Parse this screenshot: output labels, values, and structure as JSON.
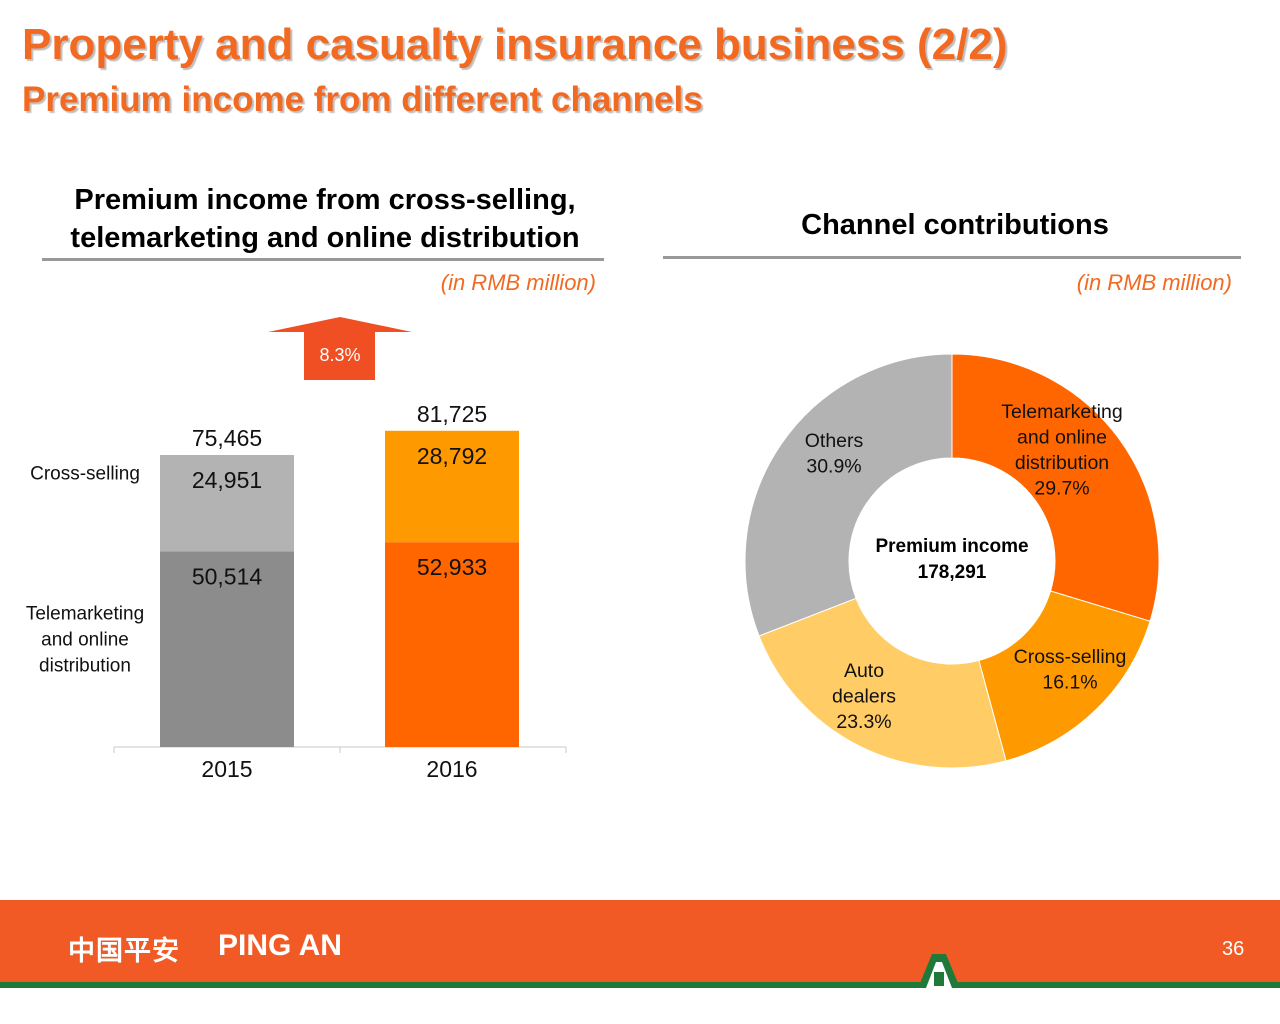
{
  "slide": {
    "title": "Property and casualty insurance business (2/2)",
    "subtitle": "Premium income from different channels",
    "page_number": "36",
    "logo_cn": "中国平安",
    "logo_en": "PING AN"
  },
  "colors": {
    "brand_orange": "#f26a21",
    "footer_orange": "#f15a24",
    "footer_green": "#1f7a3a",
    "telemarketing_2016": "#ff6600",
    "cross_selling_2016": "#ff9900",
    "telemarketing_2015": "#8c8c8c",
    "cross_selling_2015": "#b3b3b3",
    "auto_dealers": "#ffcc66",
    "growth_arrow": "#f04e23"
  },
  "chart_data": [
    {
      "type": "bar",
      "stacked": true,
      "title": "Premium income from cross-selling, telemarketing and online distribution",
      "title_lines": [
        "Premium income from cross-selling,",
        "telemarketing and online distribution"
      ],
      "unit": "(in RMB million)",
      "categories": [
        "2015",
        "2016"
      ],
      "series": [
        {
          "name": "Telemarketing and online distribution",
          "label_lines": [
            "Telemarketing",
            "and online",
            "distribution"
          ],
          "values": [
            50514,
            52933
          ],
          "value_labels": [
            "50,514",
            "52,933"
          ]
        },
        {
          "name": "Cross-selling",
          "label_lines": [
            "Cross-selling"
          ],
          "values": [
            24951,
            28792
          ],
          "value_labels": [
            "24,951",
            "28,792"
          ]
        }
      ],
      "totals": [
        75465,
        81725
      ],
      "total_labels": [
        "75,465",
        "81,725"
      ],
      "growth_label": "8.3%",
      "ylim": [
        0,
        90000
      ]
    },
    {
      "type": "pie",
      "donut": true,
      "title": "Channel contributions",
      "unit": "(in RMB million)",
      "center_label": "Premium income",
      "center_value": "178,291",
      "slices": [
        {
          "name": "Telemarketing and online distribution",
          "label_lines": [
            "Telemarketing",
            "and online",
            "distribution"
          ],
          "value": 29.7,
          "value_label": "29.7%"
        },
        {
          "name": "Cross-selling",
          "label_lines": [
            "Cross-selling"
          ],
          "value": 16.1,
          "value_label": "16.1%"
        },
        {
          "name": "Auto dealers",
          "label_lines": [
            "Auto",
            "dealers"
          ],
          "value": 23.3,
          "value_label": "23.3%"
        },
        {
          "name": "Others",
          "label_lines": [
            "Others"
          ],
          "value": 30.9,
          "value_label": "30.9%"
        }
      ]
    }
  ]
}
